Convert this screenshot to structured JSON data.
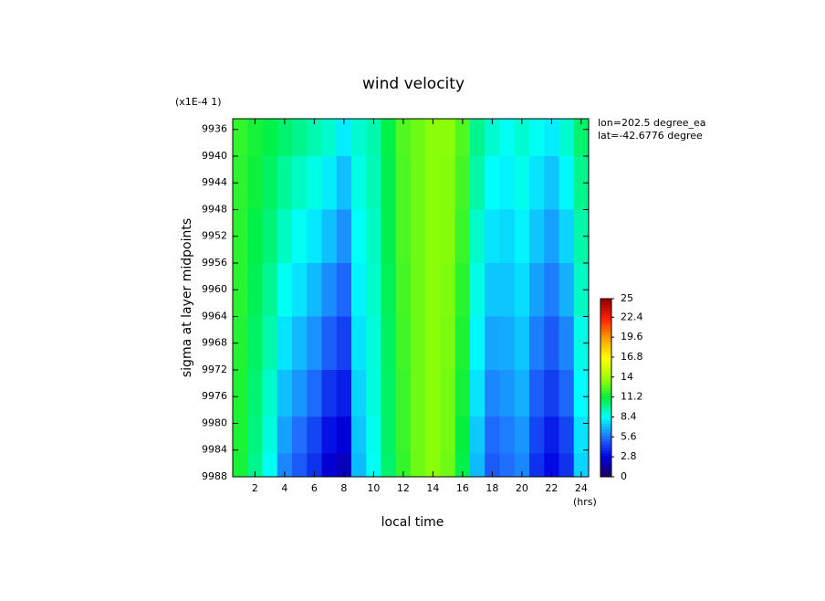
{
  "chart_data": {
    "type": "contour",
    "title": "wind velocity",
    "subtitle": "(x1E-4 1)",
    "x_label": "local time",
    "x_unit": "(hrs)",
    "y_label": "sigma at layer midpoints",
    "annotations": [
      "lon=202.5 degree_ea",
      "lat=-42.6776 degree"
    ],
    "x": [
      1,
      2,
      3,
      4,
      5,
      6,
      7,
      8,
      9,
      10,
      11,
      12,
      13,
      14,
      15,
      16,
      17,
      18,
      19,
      20,
      21,
      22,
      23,
      24
    ],
    "y": [
      9936,
      9944,
      9952,
      9960,
      9968,
      9976,
      9982,
      9987
    ],
    "values": [
      [
        12,
        11.5,
        11,
        10.5,
        10,
        9.5,
        9,
        8,
        9,
        9.5,
        11,
        12.5,
        13,
        13.5,
        13.5,
        12.5,
        10,
        9,
        8.5,
        9,
        8.5,
        8,
        9,
        10.5
      ],
      [
        11.9,
        11.3,
        10.6,
        9.8,
        9.2,
        8.7,
        8.0,
        7.1,
        8.7,
        9.4,
        10.9,
        12.4,
        13,
        13.5,
        13.4,
        12.3,
        9.6,
        8.4,
        8.1,
        8.6,
        7.8,
        7.2,
        8.2,
        10.0
      ],
      [
        11.8,
        11.0,
        10.3,
        9.2,
        8.5,
        7.9,
        7.1,
        6.2,
        8.4,
        9.2,
        10.9,
        12.4,
        13,
        13.5,
        13.4,
        12.1,
        9.1,
        7.8,
        7.6,
        8.1,
        7.2,
        6.5,
        7.5,
        9.6
      ],
      [
        11.8,
        10.8,
        9.9,
        8.5,
        7.8,
        7.0,
        6.1,
        5.3,
        8.1,
        9.1,
        10.8,
        12.3,
        13,
        13.5,
        13.3,
        11.8,
        8.7,
        7.2,
        7.2,
        7.7,
        6.5,
        5.8,
        6.8,
        9.2
      ],
      [
        11.7,
        10.6,
        9.5,
        7.8,
        7.0,
        6.2,
        5.1,
        4.4,
        7.8,
        8.9,
        10.7,
        12.2,
        13,
        13.5,
        13.2,
        11.6,
        8.2,
        6.6,
        6.7,
        7.2,
        5.8,
        5.0,
        6.0,
        8.7
      ],
      [
        11.6,
        10.4,
        9.1,
        7.1,
        6.3,
        5.4,
        4.1,
        3.5,
        7.5,
        8.8,
        10.6,
        12.1,
        13,
        13.5,
        13.1,
        11.4,
        7.8,
        6.0,
        6.3,
        6.8,
        5.1,
        4.3,
        5.3,
        8.3
      ],
      [
        11.6,
        10.2,
        8.8,
        6.5,
        5.5,
        4.5,
        3.2,
        2.6,
        7.2,
        8.6,
        10.6,
        12.1,
        13,
        13.5,
        13.1,
        11.2,
        7.3,
        5.4,
        5.8,
        6.3,
        4.5,
        3.5,
        4.5,
        7.8
      ],
      [
        11.5,
        10,
        8.5,
        6,
        5,
        4,
        2.5,
        2,
        7,
        8.5,
        10.5,
        12,
        13,
        13.5,
        13,
        11,
        7,
        5,
        5.5,
        6,
        4,
        3,
        4,
        7.5
      ]
    ],
    "xlim": [
      0.5,
      24.5
    ],
    "xticks": [
      2,
      4,
      6,
      8,
      10,
      12,
      14,
      16,
      18,
      20,
      22,
      24
    ],
    "ylim": [
      9988,
      9934.4
    ],
    "yticks": [
      9936,
      9940,
      9944,
      9948,
      9952,
      9956,
      9960,
      9964,
      9968,
      9972,
      9976,
      9980,
      9984,
      9988
    ],
    "colorbar": {
      "lim": [
        0,
        25
      ],
      "ticks": [
        0,
        2.8,
        5.6,
        8.4,
        11.2,
        14,
        16.8,
        19.6,
        22.4,
        25
      ],
      "colors": [
        "#200060",
        "#0000e0",
        "#2070ff",
        "#00ffff",
        "#00f040",
        "#a0ff00",
        "#ffff00",
        "#ffa000",
        "#ff2000",
        "#900000"
      ]
    }
  }
}
